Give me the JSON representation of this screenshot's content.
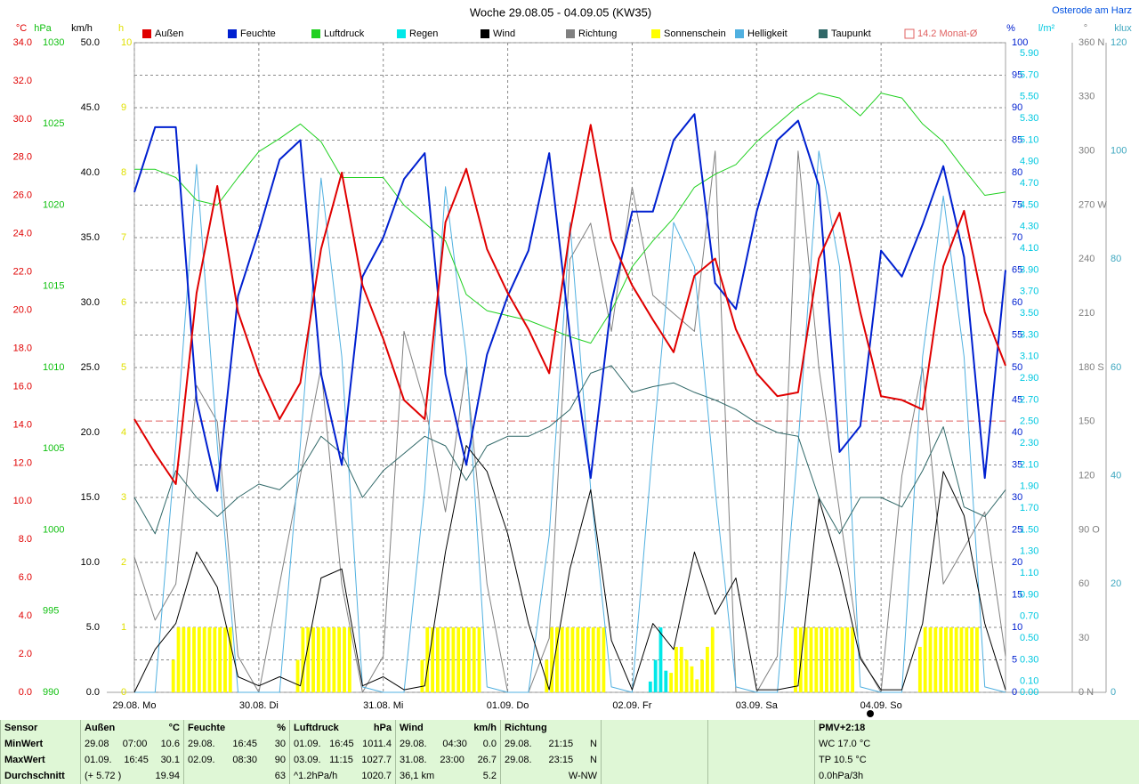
{
  "location": "Osterode am Harz",
  "chart_data": {
    "type": "line",
    "title": "Woche 29.08.05 - 04.09.05 (KW35)",
    "xlim": [
      0,
      168
    ],
    "xticks": [
      {
        "value": 0,
        "label": "29.08. Mo"
      },
      {
        "value": 24,
        "label": "30.08. Di"
      },
      {
        "value": 48,
        "label": "31.08. Mi"
      },
      {
        "value": 72,
        "label": "01.09. Do"
      },
      {
        "value": 96,
        "label": "02.09. Fr"
      },
      {
        "value": 120,
        "label": "03.09. Sa"
      },
      {
        "value": 144,
        "label": "04.09. So"
      }
    ],
    "xgrid": true,
    "axes": [
      {
        "unit": "°C",
        "color": "#e00000",
        "lim": [
          0,
          34
        ],
        "ticks": [
          {
            "value": 0,
            "label": "0.0"
          },
          {
            "value": 2,
            "label": "2.0"
          },
          {
            "value": 4,
            "label": "4.0"
          },
          {
            "value": 6,
            "label": "6.0"
          },
          {
            "value": 8,
            "label": "8.0"
          },
          {
            "value": 10,
            "label": "10.0"
          },
          {
            "value": 12,
            "label": "12.0"
          },
          {
            "value": 14,
            "label": "14.0"
          },
          {
            "value": 16,
            "label": "16.0"
          },
          {
            "value": 18,
            "label": "18.0"
          },
          {
            "value": 20,
            "label": "20.0"
          },
          {
            "value": 22,
            "label": "22.0"
          },
          {
            "value": 24,
            "label": "24.0"
          },
          {
            "value": 26,
            "label": "26.0"
          },
          {
            "value": 28,
            "label": "28.0"
          },
          {
            "value": 30,
            "label": "30.0"
          },
          {
            "value": 32,
            "label": "32.0"
          },
          {
            "value": 34,
            "label": "34.0"
          }
        ]
      },
      {
        "unit": "hPa",
        "color": "#10c010",
        "lim": [
          990,
          1030
        ],
        "ticks": [
          990,
          995,
          1000,
          1005,
          1010,
          1015,
          1020,
          1025,
          1030
        ]
      },
      {
        "unit": "km/h",
        "color": "#000000",
        "lim": [
          0,
          50
        ],
        "ticks": [
          {
            "value": 0,
            "label": "0.0"
          },
          {
            "value": 5,
            "label": "5.0"
          },
          {
            "value": 10,
            "label": "10.0"
          },
          {
            "value": 15,
            "label": "15.0"
          },
          {
            "value": 20,
            "label": "20.0"
          },
          {
            "value": 25,
            "label": "25.0"
          },
          {
            "value": 30,
            "label": "30.0"
          },
          {
            "value": 35,
            "label": "35.0"
          },
          {
            "value": 40,
            "label": "40.0"
          },
          {
            "value": 45,
            "label": "45.0"
          },
          {
            "value": 50,
            "label": "50.0"
          }
        ]
      },
      {
        "unit": "h",
        "color": "#e0e000",
        "lim": [
          0,
          10
        ],
        "ticks": [
          0,
          1,
          2,
          3,
          4,
          5,
          6,
          7,
          8,
          9,
          10
        ]
      },
      {
        "unit": "%",
        "color": "#0020d0",
        "lim": [
          0,
          100
        ],
        "grid": true,
        "ticks": [
          0,
          5,
          10,
          15,
          20,
          25,
          30,
          35,
          40,
          45,
          50,
          55,
          60,
          65,
          70,
          75,
          80,
          85,
          90,
          95,
          100
        ]
      },
      {
        "unit": "l/m²",
        "color": "#00c8e0",
        "lim": [
          0,
          6
        ],
        "ticks": [
          {
            "value": 0,
            "label": "0.00"
          },
          {
            "value": 0.1,
            "label": "0.10"
          },
          {
            "value": 0.3,
            "label": "0.30"
          },
          {
            "value": 0.5,
            "label": "0.50"
          },
          {
            "value": 0.7,
            "label": "0.70"
          },
          {
            "value": 0.9,
            "label": "0.90"
          },
          {
            "value": 1.1,
            "label": "1.10"
          },
          {
            "value": 1.3,
            "label": "1.30"
          },
          {
            "value": 1.5,
            "label": "1.50"
          },
          {
            "value": 1.7,
            "label": "1.70"
          },
          {
            "value": 1.9,
            "label": "1.90"
          },
          {
            "value": 2.1,
            "label": "2.10"
          },
          {
            "value": 2.3,
            "label": "2.30"
          },
          {
            "value": 2.5,
            "label": "2.50"
          },
          {
            "value": 2.7,
            "label": "2.70"
          },
          {
            "value": 2.9,
            "label": "2.90"
          },
          {
            "value": 3.1,
            "label": "3.10"
          },
          {
            "value": 3.3,
            "label": "3.30"
          },
          {
            "value": 3.5,
            "label": "3.50"
          },
          {
            "value": 3.7,
            "label": "3.70"
          },
          {
            "value": 3.9,
            "label": "3.90"
          },
          {
            "value": 4.1,
            "label": "4.10"
          },
          {
            "value": 4.3,
            "label": "4.30"
          },
          {
            "value": 4.5,
            "label": "4.50"
          },
          {
            "value": 4.7,
            "label": "4.70"
          },
          {
            "value": 4.9,
            "label": "4.90"
          },
          {
            "value": 5.1,
            "label": "5.10"
          },
          {
            "value": 5.3,
            "label": "5.30"
          },
          {
            "value": 5.5,
            "label": "5.50"
          },
          {
            "value": 5.7,
            "label": "5.70"
          },
          {
            "value": 5.9,
            "label": "5.90"
          }
        ]
      },
      {
        "unit": "°",
        "color": "#808080",
        "lim": [
          0,
          360
        ],
        "ticks": [
          {
            "value": 0,
            "label": "0 N"
          },
          30,
          60,
          {
            "value": 90,
            "label": "90 O"
          },
          120,
          150,
          {
            "value": 180,
            "label": "180 S"
          },
          210,
          240,
          {
            "value": 270,
            "label": "270 W"
          },
          300,
          330,
          {
            "value": 360,
            "label": "360 N"
          }
        ]
      },
      {
        "unit": "klux",
        "color": "#40a8c0",
        "lim": [
          0,
          120
        ],
        "ticks": [
          0,
          20,
          40,
          60,
          80,
          100,
          120
        ]
      }
    ],
    "monthly_mean": {
      "value": 14.2,
      "label": "14.2 Monat-Ø",
      "color": "#e06060",
      "axis": "°C"
    },
    "x": [
      0,
      4,
      8,
      12,
      16,
      20,
      24,
      28,
      32,
      36,
      40,
      44,
      48,
      52,
      56,
      60,
      64,
      68,
      72,
      76,
      80,
      84,
      88,
      92,
      96,
      100,
      104,
      108,
      112,
      116,
      120,
      124,
      128,
      132,
      136,
      140,
      144,
      148,
      152,
      156,
      160,
      164,
      168
    ],
    "series": [
      {
        "name": "Außen",
        "color": "#e00000",
        "axis": "°C",
        "values": [
          14.3,
          12.5,
          10.9,
          20.9,
          26.5,
          19.9,
          16.7,
          14.3,
          16.2,
          23.2,
          27.2,
          21.3,
          18.5,
          15.3,
          14.3,
          24.6,
          27.4,
          23.2,
          20.9,
          19.0,
          16.7,
          24.1,
          29.7,
          23.7,
          21.3,
          19.5,
          17.8,
          21.8,
          22.7,
          19.0,
          16.7,
          15.5,
          15.7,
          22.7,
          25.1,
          19.9,
          15.5,
          15.3,
          14.8,
          22.3,
          25.2,
          19.9,
          17.1
        ]
      },
      {
        "name": "Feuchte",
        "color": "#0020d0",
        "axis": "%",
        "values": [
          77,
          87,
          87,
          45,
          31,
          61,
          71,
          82,
          85,
          49,
          35,
          64,
          70,
          79,
          83,
          49,
          35,
          52,
          61,
          68,
          83,
          55,
          33,
          60,
          74,
          74,
          85,
          89,
          63,
          59,
          74,
          85,
          88,
          78,
          37,
          41,
          68,
          64,
          72,
          81,
          67,
          33,
          65
        ]
      },
      {
        "name": "Luftdruck",
        "color": "#20d020",
        "axis": "hPa",
        "values": [
          1022.2,
          1022.2,
          1021.7,
          1020.3,
          1020.0,
          1021.7,
          1023.3,
          1024.1,
          1025.0,
          1023.9,
          1021.7,
          1021.7,
          1021.7,
          1020.0,
          1018.9,
          1017.8,
          1014.5,
          1013.5,
          1013.2,
          1012.9,
          1012.4,
          1011.9,
          1011.5,
          1013.5,
          1016.2,
          1017.8,
          1019.2,
          1021.1,
          1021.9,
          1022.5,
          1023.9,
          1025.0,
          1026.1,
          1026.9,
          1026.6,
          1025.5,
          1026.9,
          1026.6,
          1025.0,
          1023.9,
          1022.2,
          1020.6,
          1020.8
        ]
      },
      {
        "name": "Regen",
        "color": "#00e8e8",
        "axis": "l/m²",
        "kind": "bar",
        "x": [
          99,
          100,
          101,
          102
        ],
        "values": [
          0.1,
          0.3,
          0.6,
          0.2
        ]
      },
      {
        "name": "Wind",
        "color": "#000000",
        "axis": "km/h",
        "values": [
          0,
          3.3,
          5.3,
          10.8,
          8.1,
          1.2,
          0.5,
          1.2,
          0.5,
          8.8,
          9.5,
          0.5,
          1.2,
          0.2,
          0.5,
          10.8,
          19.0,
          17.0,
          12.2,
          5.3,
          0.2,
          9.5,
          15.6,
          4.0,
          0.2,
          5.3,
          3.3,
          10.8,
          6.0,
          8.8,
          0.2,
          0.2,
          0.5,
          14.9,
          9.5,
          2.6,
          0.2,
          0.2,
          5.3,
          17.0,
          13.6,
          5.3,
          0.2
        ]
      },
      {
        "name": "Richtung",
        "color": "#808080",
        "axis": "°",
        "values": [
          75,
          40,
          60,
          170,
          150,
          20,
          0,
          60,
          120,
          180,
          60,
          0,
          20,
          200,
          160,
          100,
          180,
          60,
          0,
          0,
          30,
          240,
          260,
          200,
          280,
          220,
          210,
          200,
          300,
          0,
          0,
          20,
          300,
          180,
          100,
          20,
          0,
          120,
          180,
          60,
          80,
          100,
          20
        ]
      },
      {
        "name": "Sonnenschein",
        "color": "#ffff00",
        "axis": "h",
        "kind": "bar",
        "x": [
          7,
          8,
          9,
          10,
          11,
          12,
          13,
          14,
          15,
          16,
          17,
          18,
          31,
          32,
          33,
          34,
          35,
          36,
          37,
          38,
          39,
          40,
          41,
          55,
          56,
          57,
          58,
          59,
          60,
          61,
          62,
          63,
          64,
          65,
          66,
          79,
          80,
          81,
          82,
          83,
          84,
          85,
          86,
          87,
          88,
          89,
          90,
          103,
          104,
          105,
          106,
          107,
          108,
          109,
          110,
          111,
          127,
          128,
          129,
          130,
          131,
          132,
          133,
          134,
          135,
          136,
          137,
          138,
          151,
          152,
          153,
          154,
          155,
          156,
          157,
          158,
          159,
          160,
          161,
          162
        ],
        "values": [
          0.5,
          1,
          1,
          1,
          1,
          1,
          1,
          1,
          1,
          1,
          1,
          1,
          0.5,
          1,
          1,
          1,
          1,
          1,
          1,
          1,
          1,
          1,
          1,
          0.5,
          1,
          1,
          1,
          1,
          1,
          1,
          1,
          1,
          1,
          1,
          1,
          0.5,
          1,
          1,
          1,
          1,
          1,
          1,
          1,
          1,
          1,
          1,
          1,
          0.3,
          0.7,
          0.7,
          0.5,
          0.4,
          0.2,
          0.5,
          0.7,
          1,
          1,
          1,
          1,
          1,
          1,
          1,
          1,
          1,
          1,
          1,
          1,
          1,
          0.7,
          1,
          1,
          1,
          1,
          1,
          1,
          1,
          1,
          1,
          1,
          1
        ]
      },
      {
        "name": "Helligkeit",
        "color": "#50b0e0",
        "axis": "klux",
        "values": [
          0,
          0,
          45.7,
          97.5,
          45.7,
          0,
          0,
          0,
          45.7,
          95,
          62,
          1,
          0,
          0,
          37.5,
          93.4,
          62,
          1,
          0,
          0,
          29,
          86.8,
          37.5,
          1,
          0,
          45.7,
          86.8,
          78.6,
          37.5,
          1,
          0,
          0,
          45.7,
          100,
          78.6,
          1,
          0,
          0,
          62,
          91.7,
          62,
          1,
          0
        ]
      },
      {
        "name": "Taupunkt",
        "color": "#306868",
        "axis": "°C",
        "values": [
          10.2,
          8.3,
          11.6,
          10.2,
          9.2,
          10.2,
          10.9,
          10.6,
          11.6,
          13.4,
          12.5,
          10.2,
          11.6,
          12.5,
          13.4,
          12.9,
          11.1,
          12.9,
          13.4,
          13.4,
          13.9,
          14.8,
          16.7,
          17.1,
          15.7,
          16.0,
          16.2,
          15.7,
          15.3,
          14.8,
          14.1,
          13.6,
          13.4,
          10.2,
          8.3,
          10.2,
          10.2,
          9.7,
          11.6,
          13.9,
          9.7,
          9.2,
          10.6
        ]
      }
    ]
  },
  "table": {
    "header": [
      [
        "Sensor"
      ],
      [
        "Außen",
        "°C"
      ],
      [
        "Feuchte",
        "%"
      ],
      [
        "Luftdruck",
        "hPa"
      ],
      [
        "Wind",
        "km/h"
      ],
      [
        "Richtung"
      ],
      [],
      [],
      [
        "PMV+2:18"
      ]
    ],
    "rows": [
      [
        [
          "MinWert"
        ],
        [
          "29.08",
          "07:00",
          "10.6"
        ],
        [
          "29.08.",
          "16:45",
          "30"
        ],
        [
          "01.09.",
          "16:45",
          "1011.4"
        ],
        [
          "29.08.",
          "04:30",
          "0.0"
        ],
        [
          "29.08.",
          "21:15",
          "N"
        ],
        [],
        [],
        [
          "WC 17.0 °C"
        ]
      ],
      [
        [
          "MaxWert"
        ],
        [
          "01.09.",
          "16:45",
          "30.1"
        ],
        [
          "02.09.",
          "08:30",
          "90"
        ],
        [
          "03.09.",
          "11:15",
          "1027.7"
        ],
        [
          "31.08.",
          "23:00",
          "26.7"
        ],
        [
          "29.08.",
          "23:15",
          "N"
        ],
        [],
        [],
        [
          "TP 10.5 °C"
        ]
      ],
      [
        [
          "Durchschnitt"
        ],
        [
          "(+ 5.72 )",
          "19.94"
        ],
        [
          "63"
        ],
        [
          "^1.2hPa/h",
          "1020.7"
        ],
        [
          "36,1 km",
          "5.2"
        ],
        [
          "W-NW"
        ],
        [],
        [],
        [
          "0.0hPa/3h"
        ]
      ]
    ]
  }
}
